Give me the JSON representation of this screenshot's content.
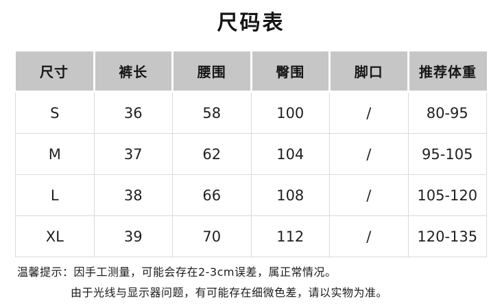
{
  "page_title": "尺码表",
  "size_chart": {
    "columns": [
      "尺寸",
      "裤长",
      "腰围",
      "臀围",
      "脚口",
      "推荐体重"
    ],
    "rows": [
      [
        "S",
        "36",
        "58",
        "100",
        "/",
        "80-95"
      ],
      [
        "M",
        "37",
        "62",
        "104",
        "/",
        "95-105"
      ],
      [
        "L",
        "38",
        "66",
        "108",
        "/",
        "105-120"
      ],
      [
        "XL",
        "39",
        "70",
        "112",
        "/",
        "120-135"
      ]
    ]
  },
  "notes": {
    "line1": "温馨提示：因手工测量，可能会存在2-3cm误差，属正常情况。",
    "line2": "由于光线与显示器问题，有可能存在细微色差，请以实物为准。"
  },
  "colors": {
    "header_bg": "#c6c6c6",
    "cell_border": "#d9d9d9",
    "text": "#1a1a1a",
    "background": "#ffffff"
  }
}
